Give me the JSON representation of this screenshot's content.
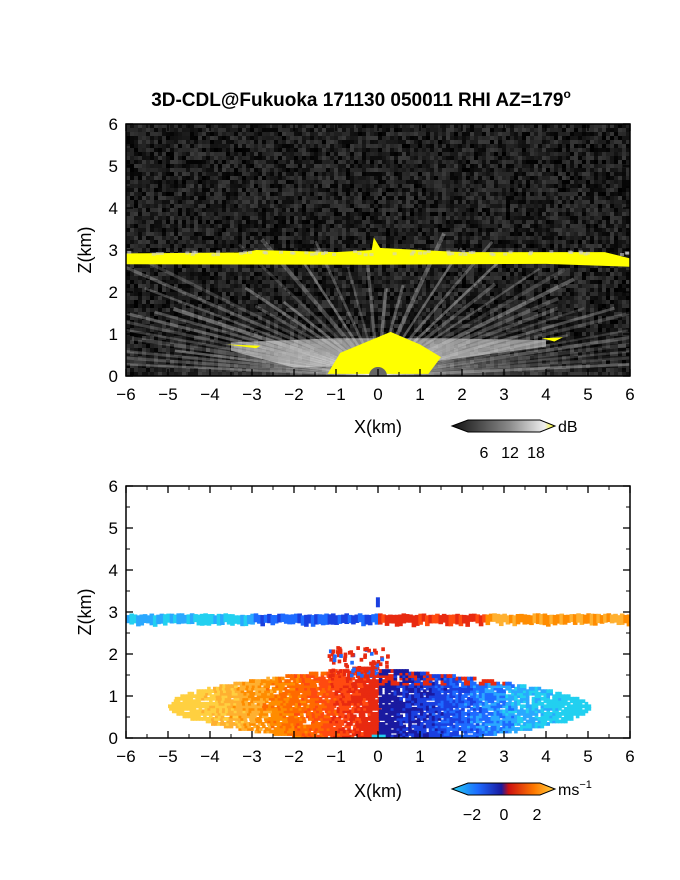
{
  "title": {
    "main": "3D-CDL@Fukuoka 171130 050011 RHI AZ=179",
    "sup": "o"
  },
  "chart_data": [
    {
      "type": "heatmap",
      "variable": "backscatter",
      "xlabel": "X(km)",
      "ylabel": "Z(km)",
      "xlim": [
        -6,
        6
      ],
      "ylim": [
        0,
        6
      ],
      "xticks": [
        -6,
        -5,
        -4,
        -3,
        -2,
        -1,
        0,
        1,
        2,
        3,
        4,
        5,
        6
      ],
      "yticks": [
        0,
        1,
        2,
        3,
        4,
        5,
        6
      ],
      "colorbar": {
        "unit": "dB",
        "ticks": [
          6,
          12,
          18
        ],
        "colors": [
          "#111111",
          "#555555",
          "#999999",
          "#dddddd",
          "#ffffff",
          "#ffff00"
        ]
      },
      "features": [
        {
          "name": "cloud_base_layer",
          "z_km": 2.8,
          "x_range_km": [
            -6,
            6
          ],
          "level_db": 18,
          "color": "#ffff00"
        },
        {
          "name": "boundary_layer_fan",
          "z_top_km": 1.8,
          "x_range_km": [
            -3.5,
            5.5
          ],
          "level_db": 12
        },
        {
          "name": "near_lidar_core",
          "z_top_km": 1.0,
          "x_range_km": [
            -0.8,
            1.0
          ],
          "level_db": 18,
          "color": "#ffff00"
        }
      ]
    },
    {
      "type": "heatmap",
      "variable": "radial_velocity",
      "xlabel": "X(km)",
      "ylabel": "Z(km)",
      "xlim": [
        -6,
        6
      ],
      "ylim": [
        0,
        6
      ],
      "xticks": [
        -6,
        -5,
        -4,
        -3,
        -2,
        -1,
        0,
        1,
        2,
        3,
        4,
        5,
        6
      ],
      "yticks": [
        0,
        1,
        2,
        3,
        4,
        5,
        6
      ],
      "colorbar": {
        "unit": "ms",
        "unit_sup": "−1",
        "ticks": [
          "−2",
          "0",
          "2"
        ],
        "colors": [
          "#22d0f0",
          "#1e6bff",
          "#1a1aa0",
          "#cc1010",
          "#ff7a00",
          "#ffd040"
        ]
      },
      "features": [
        {
          "name": "cloud_layer_west",
          "z_km": 2.8,
          "x_range_km": [
            -6,
            0
          ],
          "velocity_ms": -1.5
        },
        {
          "name": "cloud_layer_east",
          "z_km": 2.8,
          "x_range_km": [
            0,
            6
          ],
          "velocity_ms": 1.5
        },
        {
          "name": "boundary_layer_west",
          "z_range_km": [
            0,
            2.2
          ],
          "x_range_km": [
            -5,
            0
          ],
          "velocity_ms": 1.5
        },
        {
          "name": "boundary_layer_east",
          "z_range_km": [
            0,
            1.6
          ],
          "x_range_km": [
            0,
            5
          ],
          "velocity_ms": -1.5
        }
      ]
    }
  ]
}
